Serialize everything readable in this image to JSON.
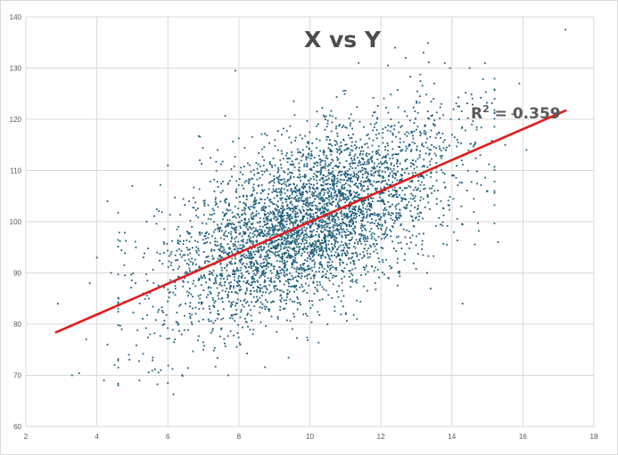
{
  "chart_data": {
    "type": "scatter",
    "title": "X vs Y",
    "xlabel": "",
    "ylabel": "",
    "xlim": [
      2,
      18
    ],
    "ylim": [
      60,
      140
    ],
    "x_ticks": [
      "2",
      "4",
      "6",
      "8",
      "10",
      "12",
      "14",
      "16",
      "18"
    ],
    "y_ticks": [
      "60",
      "70",
      "80",
      "90",
      "100",
      "110",
      "120",
      "130",
      "140"
    ],
    "grid": true,
    "legend": "none",
    "point_color": "#1f5f7a",
    "trendline": {
      "type": "linear",
      "color": "#e31a1c",
      "x_start": 2.85,
      "y_start": 78.4,
      "x_end": 17.2,
      "y_end": 121.7,
      "r_squared_label": "0.359"
    },
    "point_summary": {
      "x_mean": 10.0,
      "x_sd": 2.0,
      "y_mean": 100.0,
      "y_sd": 10.0,
      "correlation": 0.6
    },
    "series": [
      {
        "x": [
          2.9,
          3.3,
          3.5,
          3.7,
          3.8,
          4.0,
          4.1,
          4.2,
          4.3,
          4.3,
          4.4,
          4.5,
          4.6,
          4.7,
          4.9,
          5.0,
          5.1,
          5.2,
          5.3,
          5.4,
          5.5,
          5.6,
          5.7,
          5.8,
          5.9,
          6.0,
          6.0,
          6.1,
          6.2,
          6.3,
          6.4,
          6.5,
          6.6,
          6.7,
          6.9,
          7.0,
          7.1,
          7.2,
          7.4,
          7.5,
          7.7,
          7.9,
          7.9,
          12.2,
          12.4,
          12.7,
          12.9,
          13.1,
          13.2,
          13.3,
          13.5,
          13.7,
          13.8,
          14.0,
          14.2,
          14.3,
          14.5,
          14.7,
          14.8,
          15.0,
          15.2,
          15.3,
          15.5,
          15.7,
          15.9,
          16.1,
          17.2
        ],
        "y": [
          84.0,
          70.0,
          70.4,
          77.0,
          88.0,
          93.0,
          82.0,
          69.0,
          104.0,
          76.0,
          90.0,
          72.0,
          84.0,
          79.0,
          74.0,
          107.0,
          95.0,
          69.0,
          86.0,
          100.0,
          78.0,
          88.0,
          94.0,
          71.0,
          80.0,
          111.0,
          68.5,
          92.0,
          77.0,
          99.0,
          70.0,
          84.0,
          104.0,
          90.0,
          112.0,
          75.0,
          96.0,
          86.0,
          114.0,
          79.0,
          70.0,
          129.5,
          98.0,
          130.5,
          134.0,
          132.0,
          112.0,
          124.5,
          133.0,
          90.0,
          127.0,
          123.0,
          131.0,
          109.0,
          120.0,
          84.0,
          130.0,
          118.0,
          113.0,
          106.0,
          124.0,
          96.0,
          115.0,
          121.0,
          127.0,
          114.0,
          137.5
        ]
      }
    ]
  }
}
